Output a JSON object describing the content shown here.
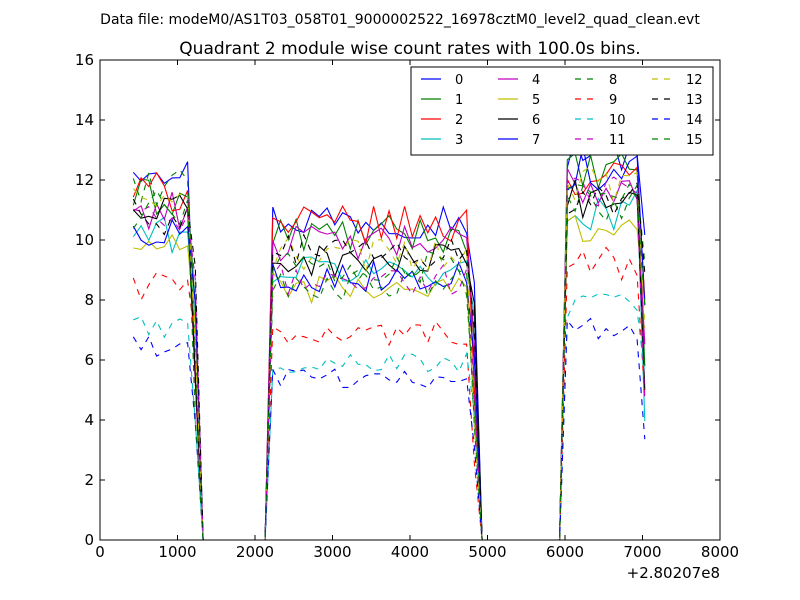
{
  "header": {
    "data_file": "Data file: modeM0/AS1T03_058T01_9000002522_16978cztM0_level2_quad_clean.evt"
  },
  "chart_data": {
    "type": "line",
    "title": "Quadrant 2 module wise count rates with 100.0s bins.",
    "xlabel": "",
    "ylabel": "",
    "x_offset_label": "+2.80207e8",
    "xlim": [
      0,
      8000
    ],
    "ylim": [
      0,
      16
    ],
    "xticks": [
      0,
      1000,
      2000,
      3000,
      4000,
      5000,
      6000,
      7000,
      8000
    ],
    "yticks": [
      0,
      2,
      4,
      6,
      8,
      10,
      12,
      14,
      16
    ],
    "grid": false,
    "legend_position": "top-right",
    "segments": [
      {
        "x_start": 430,
        "x_end": 1230
      },
      {
        "x_start": 1330,
        "x_end": 2130
      },
      {
        "x_start": 2230,
        "x_end": 4830
      },
      {
        "x_start": 4930,
        "x_end": 5930
      },
      {
        "x_start": 6030,
        "x_end": 7030
      }
    ],
    "series": [
      {
        "name": "0",
        "color": "#0000ff",
        "dash": "solid",
        "levels": [
          12.6,
          0,
          10.7,
          0,
          13.0
        ]
      },
      {
        "name": "1",
        "color": "#008000",
        "dash": "solid",
        "levels": [
          11.4,
          0,
          10.2,
          0,
          12.2
        ]
      },
      {
        "name": "2",
        "color": "#ff0000",
        "dash": "solid",
        "levels": [
          11.6,
          0,
          10.5,
          0,
          12.0
        ]
      },
      {
        "name": "3",
        "color": "#00bfbf",
        "dash": "solid",
        "levels": [
          10.2,
          0,
          9.0,
          0,
          11.0
        ]
      },
      {
        "name": "4",
        "color": "#bf00bf",
        "dash": "solid",
        "levels": [
          11.0,
          0,
          9.9,
          0,
          11.8
        ]
      },
      {
        "name": "5",
        "color": "#bfbf00",
        "dash": "solid",
        "levels": [
          9.7,
          0,
          8.4,
          0,
          10.5
        ]
      },
      {
        "name": "6",
        "color": "#000000",
        "dash": "solid",
        "levels": [
          10.9,
          0,
          9.3,
          0,
          11.4
        ]
      },
      {
        "name": "7",
        "color": "#0000ff",
        "dash": "solid",
        "levels": [
          10.3,
          0,
          8.8,
          0,
          12.4
        ]
      },
      {
        "name": "8",
        "color": "#008000",
        "dash": "dashed",
        "levels": [
          11.8,
          0,
          8.5,
          0,
          11.2
        ]
      },
      {
        "name": "9",
        "color": "#ff0000",
        "dash": "dashed",
        "levels": [
          8.5,
          0,
          6.9,
          0,
          9.2
        ]
      },
      {
        "name": "10",
        "color": "#00bfbf",
        "dash": "dashed",
        "levels": [
          7.1,
          0,
          5.9,
          0,
          7.8
        ]
      },
      {
        "name": "11",
        "color": "#bf00bf",
        "dash": "dashed",
        "levels": [
          10.6,
          0,
          8.7,
          0,
          11.5
        ]
      },
      {
        "name": "12",
        "color": "#bfbf00",
        "dash": "dashed",
        "levels": [
          11.2,
          0,
          9.5,
          0,
          11.9
        ]
      },
      {
        "name": "13",
        "color": "#000000",
        "dash": "dashed",
        "levels": [
          10.8,
          0,
          9.6,
          0,
          11.3
        ]
      },
      {
        "name": "14",
        "color": "#0000ff",
        "dash": "dashed",
        "levels": [
          6.4,
          0,
          5.4,
          0,
          7.0
        ]
      },
      {
        "name": "15",
        "color": "#008000",
        "dash": "dashed",
        "levels": [
          11.0,
          0,
          9.1,
          0,
          11.6
        ]
      }
    ]
  }
}
